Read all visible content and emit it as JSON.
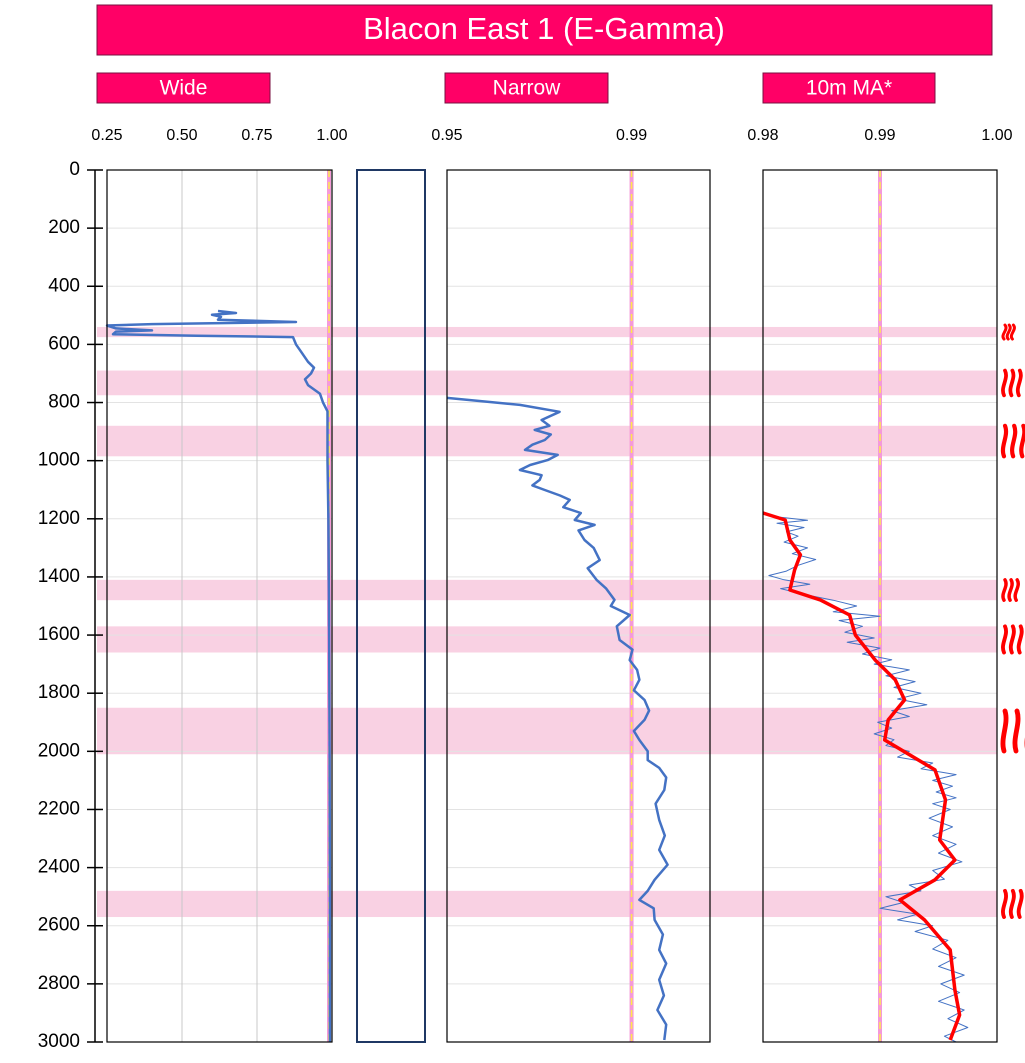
{
  "chart_data": {
    "type": "well-log",
    "title": "Blacon East 1 (E-Gamma)",
    "ylim": [
      0,
      3000
    ],
    "yticks": [
      0,
      200,
      400,
      600,
      800,
      1000,
      1200,
      1400,
      1600,
      1800,
      2000,
      2200,
      2400,
      2600,
      2800,
      3000
    ],
    "bands": [
      [
        540,
        575
      ],
      [
        690,
        775
      ],
      [
        880,
        985
      ],
      [
        1410,
        1480
      ],
      [
        1570,
        1660
      ],
      [
        1850,
        2010
      ],
      [
        2480,
        2570
      ]
    ],
    "band_color": "#f7c6dc",
    "cutoff": 0.99,
    "tracks": [
      {
        "title": "Wide",
        "xlim": [
          0.25,
          1.0
        ],
        "xticks": [
          0.25,
          {
            "value": 0.5,
            "label": "0.50"
          },
          0.75,
          {
            "value": 1,
            "label": "1.00"
          }
        ],
        "grid": true,
        "series": [
          {
            "color": "#4472c4",
            "width": 2.5,
            "depth": [
              485,
              492,
              498,
              505,
              515,
              523,
              530,
              535,
              545,
              552,
              556,
              565,
              570,
              575,
              600,
              630,
              660,
              680,
              700,
              720,
              740,
              770,
              800,
              830,
              900,
              1000,
              1200,
              1500,
              2000,
              2500,
              3000
            ],
            "values": [
              0.62,
              0.68,
              0.6,
              0.63,
              0.62,
              0.88,
              0.4,
              0.25,
              0.28,
              0.4,
              0.28,
              0.27,
              0.55,
              0.87,
              0.88,
              0.9,
              0.92,
              0.94,
              0.93,
              0.91,
              0.92,
              0.96,
              0.97,
              0.985,
              0.985,
              0.985,
              0.988,
              0.99,
              0.992,
              0.993,
              0.993
            ]
          }
        ]
      },
      {
        "title": "Narrow",
        "xlim": [
          0.95,
          1.007
        ],
        "xticks": [
          0.95,
          0.99
        ],
        "grid": false,
        "series": [
          {
            "color": "#4472c4",
            "width": 2.5,
            "depth": [
              784,
              798,
              808,
              832,
              860,
              880,
              894,
              910,
              929,
              945,
              963,
              980,
              998,
              1015,
              1032,
              1050,
              1066,
              1085,
              1101,
              1120,
              1135,
              1160,
              1180,
              1204,
              1221,
              1240,
              1273,
              1300,
              1342,
              1370,
              1410,
              1440,
              1479,
              1500,
              1531,
              1570,
              1617,
              1650,
              1686,
              1720,
              1754,
              1790,
              1823,
              1860,
              1892,
              1930,
              1961,
              2000,
              2030,
              2057,
              2090,
              2133,
              2180,
              2236,
              2290,
              2339,
              2390,
              2442,
              2480,
              2511,
              2540,
              2580,
              2630,
              2683,
              2730,
              2786,
              2840,
              2890,
              2940,
              2993
            ],
            "values": [
              0.95,
              0.9593,
              0.9658,
              0.9744,
              0.9705,
              0.9722,
              0.969,
              0.9725,
              0.9712,
              0.9685,
              0.9669,
              0.974,
              0.9718,
              0.968,
              0.9658,
              0.9705,
              0.9701,
              0.9685,
              0.9712,
              0.9745,
              0.9766,
              0.9752,
              0.979,
              0.9777,
              0.982,
              0.9785,
              0.9798,
              0.9818,
              0.9831,
              0.9805,
              0.9824,
              0.9845,
              0.9863,
              0.9855,
              0.9896,
              0.9868,
              0.9874,
              0.9902,
              0.9896,
              0.9912,
              0.9917,
              0.9905,
              0.9928,
              0.9938,
              0.9928,
              0.9905,
              0.9917,
              0.9935,
              0.9935,
              0.996,
              0.9975,
              0.9971,
              0.9952,
              0.996,
              0.9972,
              0.996,
              0.9978,
              0.995,
              0.9935,
              0.9917,
              0.9948,
              0.995,
              0.9968,
              0.996,
              0.9975,
              0.996,
              0.997,
              0.9956,
              0.9975,
              0.9971
            ]
          }
        ]
      },
      {
        "title": "10m MA*",
        "xlim": [
          0.98,
          1.0
        ],
        "xticks": [
          0.98,
          0.99,
          {
            "value": 1,
            "label": "1.00"
          }
        ],
        "grid": false,
        "series": [
          {
            "color": "#4472c4",
            "width": 1,
            "depth": [
              1180,
              1195,
              1205,
              1215,
              1230,
              1245,
              1260,
              1280,
              1300,
              1320,
              1340,
              1360,
              1380,
              1395,
              1410,
              1425,
              1440,
              1460,
              1480,
              1500,
              1520,
              1535,
              1550,
              1570,
              1590,
              1610,
              1625,
              1645,
              1665,
              1685,
              1700,
              1720,
              1740,
              1760,
              1780,
              1800,
              1820,
              1840,
              1860,
              1880,
              1900,
              1920,
              1940,
              1960,
              1980,
              2000,
              2020,
              2040,
              2060,
              2080,
              2100,
              2120,
              2140,
              2160,
              2180,
              2200,
              2230,
              2260,
              2290,
              2320,
              2350,
              2380,
              2410,
              2440,
              2460,
              2480,
              2500,
              2520,
              2540,
              2560,
              2580,
              2600,
              2620,
              2650,
              2680,
              2710,
              2740,
              2770,
              2800,
              2830,
              2860,
              2890,
              2920,
              2950,
              2980,
              3000
            ],
            "values": [
              0.98,
              0.9815,
              0.9838,
              0.9812,
              0.9835,
              0.982,
              0.983,
              0.9818,
              0.9838,
              0.9825,
              0.9845,
              0.983,
              0.982,
              0.9805,
              0.9818,
              0.984,
              0.9815,
              0.9835,
              0.986,
              0.988,
              0.986,
              0.99,
              0.9865,
              0.9885,
              0.987,
              0.9895,
              0.9872,
              0.99,
              0.9885,
              0.991,
              0.9895,
              0.9925,
              0.9905,
              0.993,
              0.9912,
              0.9935,
              0.9915,
              0.994,
              0.991,
              0.9925,
              0.9898,
              0.991,
              0.9895,
              0.9912,
              0.9905,
              0.9925,
              0.9915,
              0.9945,
              0.9935,
              0.9965,
              0.9945,
              0.9962,
              0.9948,
              0.9965,
              0.9945,
              0.996,
              0.9942,
              0.9962,
              0.9945,
              0.9965,
              0.995,
              0.997,
              0.9945,
              0.9955,
              0.9925,
              0.9935,
              0.9905,
              0.992,
              0.99,
              0.9932,
              0.9915,
              0.9945,
              0.993,
              0.9958,
              0.9945,
              0.9965,
              0.995,
              0.9972,
              0.9952,
              0.9968,
              0.995,
              0.9972,
              0.9958,
              0.9975,
              0.9955,
              0.9965
            ]
          },
          {
            "color": "#ff0000",
            "width": 3.5,
            "depth": [
              1180,
              1204,
              1273,
              1324,
              1376,
              1445,
              1479,
              1531,
              1600,
              1686,
              1754,
              1823,
              1892,
              1961,
              2064,
              2167,
              2305,
              2374,
              2442,
              2511,
              2580,
              2683,
              2821,
              2907,
              2993
            ],
            "values": [
              0.98,
              0.9819,
              0.9823,
              0.9832,
              0.9827,
              0.9823,
              0.9849,
              0.9874,
              0.9879,
              0.9896,
              0.9913,
              0.9921,
              0.9907,
              0.9904,
              0.9947,
              0.9956,
              0.9951,
              0.9964,
              0.9947,
              0.9917,
              0.9938,
              0.996,
              0.9964,
              0.9968,
              0.996
            ]
          }
        ]
      }
    ]
  }
}
